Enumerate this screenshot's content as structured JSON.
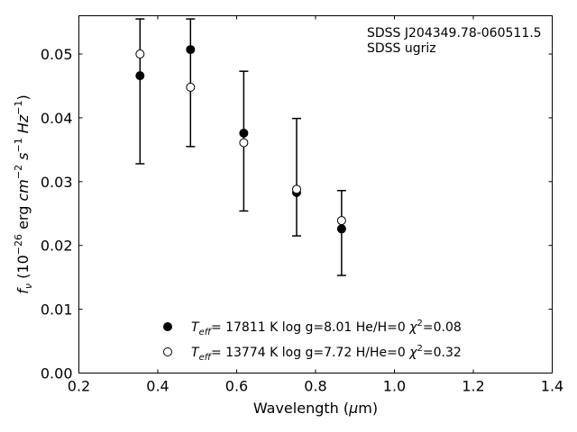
{
  "chart_data": {
    "type": "scatter",
    "annotation": [
      "SDSS J204349.78-060511.5",
      "SDSS ugriz"
    ],
    "xlabel": {
      "pre": "Wavelength (",
      "sym": "μ",
      "post": "m)"
    },
    "ylabel": {
      "f": "f",
      "nu": "ν",
      "a": " (10",
      "e1": "−26",
      "b": " erg ",
      "cm": "cm",
      "e2": "−2",
      "s": " s",
      "e3": "−1",
      "hz": " Hz",
      "e4": "−1",
      "c": ")"
    },
    "xlim": [
      0.2,
      1.4
    ],
    "ylim": [
      0.0,
      0.056
    ],
    "xticks": [
      "0.2",
      "0.4",
      "0.6",
      "0.8",
      "1.0",
      "1.2",
      "1.4"
    ],
    "yticks": [
      "0.00",
      "0.01",
      "0.02",
      "0.03",
      "0.04",
      "0.05"
    ],
    "x": [
      0.355,
      0.483,
      0.618,
      0.752,
      0.866
    ],
    "observed": {
      "y": [
        0.0555,
        0.0555,
        0.0473,
        0.0399,
        0.0286
      ],
      "yerr_low": [
        0.0328,
        0.0355,
        0.0254,
        0.0215,
        0.0153
      ]
    },
    "series": [
      {
        "name": {
          "T": "T",
          "sub": "eff",
          "rest": "= 17811 K  log g=8.01  He/H=0  ",
          "chi": "χ",
          "sup": "2",
          "tail": "=0.08"
        },
        "marker": "filled",
        "values": [
          0.0466,
          0.0507,
          0.0376,
          0.0283,
          0.0226
        ]
      },
      {
        "name": {
          "T": "T",
          "sub": "eff",
          "rest": "= 13774 K  log g=7.72  H/He=0  ",
          "chi": "χ",
          "sup": "2",
          "tail": "=0.32"
        },
        "marker": "open",
        "values": [
          0.05,
          0.0448,
          0.0361,
          0.0288,
          0.0239
        ]
      }
    ],
    "grid": false,
    "legend_position": "lower-center"
  }
}
